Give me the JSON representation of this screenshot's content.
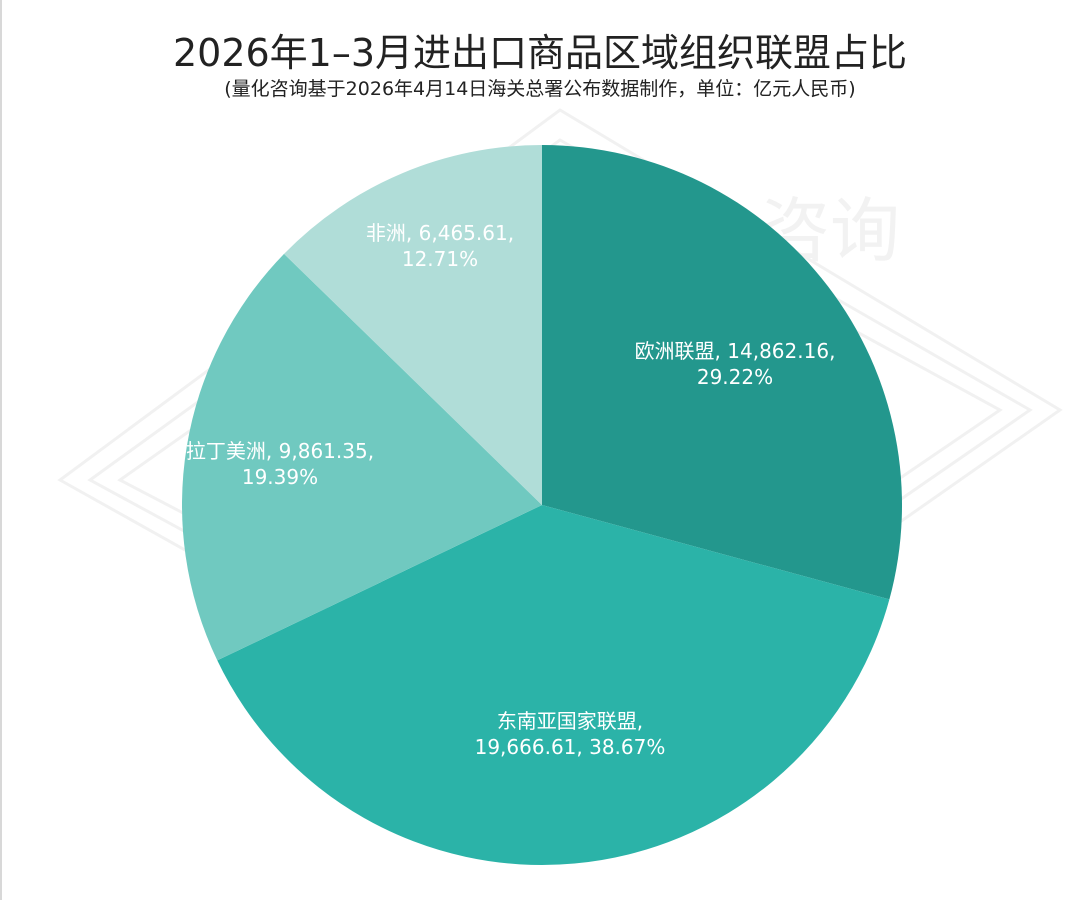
{
  "title": "2026年1–3月进出口商品区域组织联盟占比",
  "subtitle": "(量化咨询基于2026年4月14日海关总署公布数据制作，单位：亿元人民币)",
  "watermark": "量化咨询",
  "chart_data": {
    "type": "pie",
    "title": "2026年1–3月进出口商品区域组织联盟占比",
    "subtitle": "(量化咨询基于2026年4月14日海关总署公布数据制作，单位：亿元人民币)",
    "unit": "亿元人民币",
    "start_angle": "12 o'clock, clockwise",
    "categories": [
      "欧洲联盟",
      "东南亚国家联盟",
      "拉丁美洲",
      "非洲"
    ],
    "values": [
      14862.16,
      19666.61,
      9861.35,
      6465.61
    ],
    "percentages": [
      29.22,
      38.67,
      19.39,
      12.71
    ],
    "colors": [
      "#23978d",
      "#2bb3a8",
      "#70c9c0",
      "#b0ddd8"
    ],
    "labels": [
      {
        "line1": "欧洲联盟, 14,862.16,",
        "line2": "29.22%"
      },
      {
        "line1": "东南亚国家联盟,",
        "line2": "19,666.61, 38.67%"
      },
      {
        "line1": "拉丁美洲, 9,861.35,",
        "line2": "19.39%"
      },
      {
        "line1": "非洲, 6,465.61,",
        "line2": "12.71%"
      }
    ],
    "legend": "none (labels on slices)"
  }
}
